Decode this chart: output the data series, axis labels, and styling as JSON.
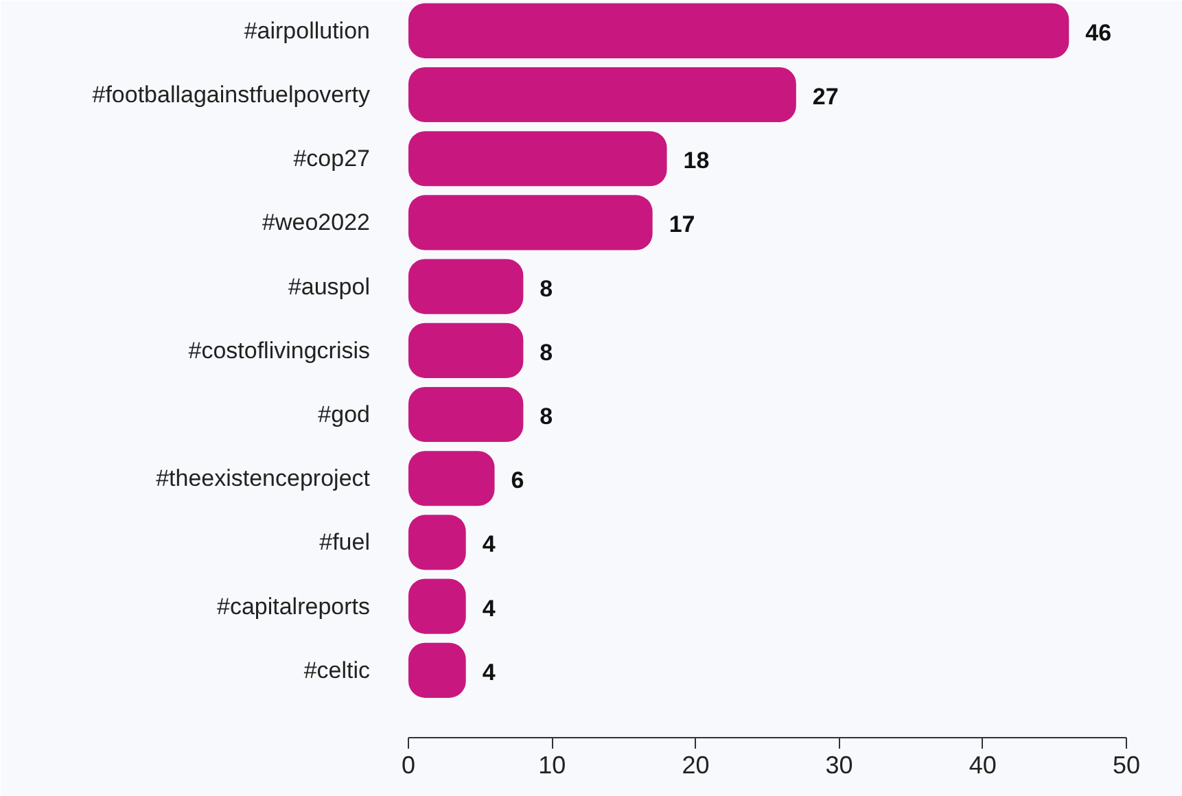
{
  "chart_data": {
    "type": "bar",
    "orientation": "horizontal",
    "categories": [
      "#airpollution",
      "#footballagainstfuelpoverty",
      "#cop27",
      "#weo2022",
      "#auspol",
      "#costoflivingcrisis",
      "#god",
      "#theexistenceproject",
      "#fuel",
      "#capitalreports",
      "#celtic"
    ],
    "values": [
      46,
      27,
      18,
      17,
      8,
      8,
      8,
      6,
      4,
      4,
      4
    ],
    "color": "#c8187f",
    "xlim": [
      0,
      50
    ],
    "xticks": [
      0,
      10,
      20,
      30,
      40,
      50
    ],
    "grid": false,
    "data_labels": true
  }
}
